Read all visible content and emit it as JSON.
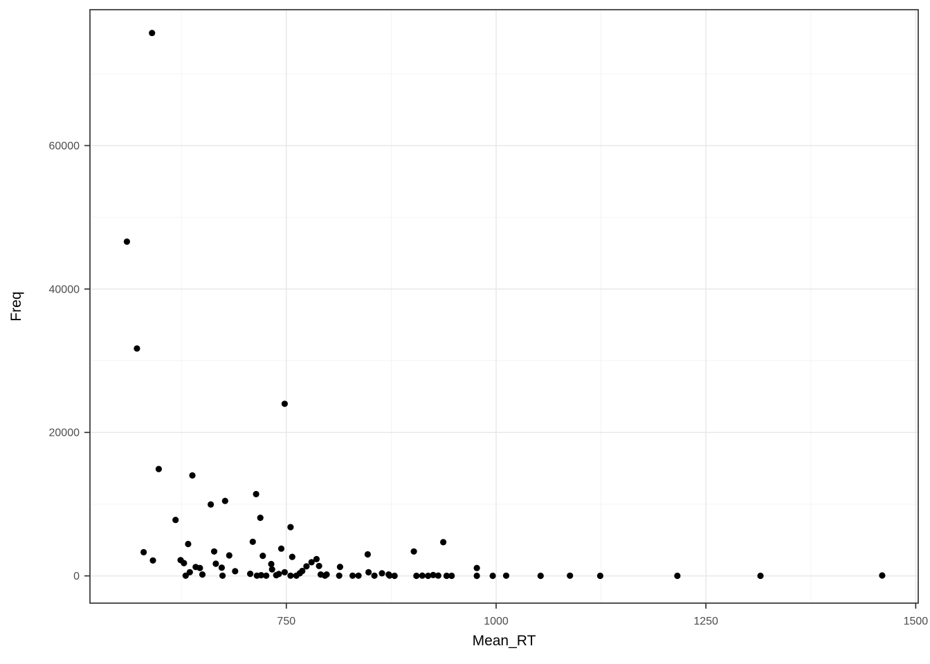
{
  "figure": {
    "background_color": "#FFFFFF"
  },
  "chart_data": {
    "type": "scatter",
    "title": "",
    "xlabel": "Mean_RT",
    "ylabel": "Freq",
    "legend": "none",
    "grid": "major+minor",
    "xlim": [
      516,
      1503
    ],
    "ylim": [
      -3800,
      78950
    ],
    "x_ticks": [
      750,
      1000,
      1250,
      1500
    ],
    "x_minor_gridlines": [
      625,
      875,
      1125,
      1375
    ],
    "y_ticks": [
      0,
      20000,
      40000,
      60000
    ],
    "y_minor_gridlines": [
      10000,
      30000,
      50000,
      70000
    ],
    "point_color": "#000000",
    "point_radius_px": 4.6,
    "panel_background": "#FFFFFF",
    "panel_border_color": "#333333",
    "major_grid_color": "#E8E8E8",
    "minor_grid_color": "#F2F2F2",
    "tick_mark_color": "#333333",
    "tick_label_color": "#4D4D4D",
    "axis_title_color": "#000000",
    "points": [
      [
        590,
        75700
      ],
      [
        560,
        46600
      ],
      [
        572,
        31700
      ],
      [
        748,
        24000
      ],
      [
        598,
        14900
      ],
      [
        638,
        14000
      ],
      [
        714,
        11400
      ],
      [
        677,
        10450
      ],
      [
        660,
        9950
      ],
      [
        719,
        8100
      ],
      [
        618,
        7800
      ],
      [
        755,
        6800
      ],
      [
        710,
        4750
      ],
      [
        937,
        4700
      ],
      [
        633,
        4450
      ],
      [
        744,
        3800
      ],
      [
        664,
        3400
      ],
      [
        902,
        3400
      ],
      [
        580,
        3300
      ],
      [
        847,
        3000
      ],
      [
        682,
        2850
      ],
      [
        722,
        2800
      ],
      [
        757,
        2650
      ],
      [
        786,
        2330
      ],
      [
        624,
        2200
      ],
      [
        591,
        2150
      ],
      [
        780,
        1900
      ],
      [
        628,
        1780
      ],
      [
        666,
        1700
      ],
      [
        732,
        1650
      ],
      [
        789,
        1380
      ],
      [
        774,
        1330
      ],
      [
        814,
        1250
      ],
      [
        642,
        1230
      ],
      [
        673,
        1150
      ],
      [
        647,
        1100
      ],
      [
        977,
        1100
      ],
      [
        733,
        900
      ],
      [
        689,
        650
      ],
      [
        769,
        680
      ],
      [
        635,
        515
      ],
      [
        748,
        510
      ],
      [
        848,
        500
      ],
      [
        630,
        30
      ],
      [
        650,
        190
      ],
      [
        674,
        30
      ],
      [
        707,
        290
      ],
      [
        715,
        30
      ],
      [
        720,
        100
      ],
      [
        726,
        30
      ],
      [
        738,
        100
      ],
      [
        741,
        260
      ],
      [
        755,
        30
      ],
      [
        762,
        30
      ],
      [
        766,
        360
      ],
      [
        791,
        190
      ],
      [
        796,
        30
      ],
      [
        798,
        190
      ],
      [
        813,
        30
      ],
      [
        829,
        30
      ],
      [
        836,
        30
      ],
      [
        855,
        30
      ],
      [
        864,
        360
      ],
      [
        872,
        190
      ],
      [
        873,
        50
      ],
      [
        879,
        10
      ],
      [
        905,
        10
      ],
      [
        912,
        40
      ],
      [
        919,
        10
      ],
      [
        925,
        120
      ],
      [
        931,
        40
      ],
      [
        941,
        10
      ],
      [
        947,
        10
      ],
      [
        977,
        10
      ],
      [
        996,
        10
      ],
      [
        1012,
        30
      ],
      [
        1053,
        10
      ],
      [
        1088,
        30
      ],
      [
        1124,
        10
      ],
      [
        1216,
        10
      ],
      [
        1315,
        10
      ],
      [
        1460,
        60
      ]
    ]
  }
}
